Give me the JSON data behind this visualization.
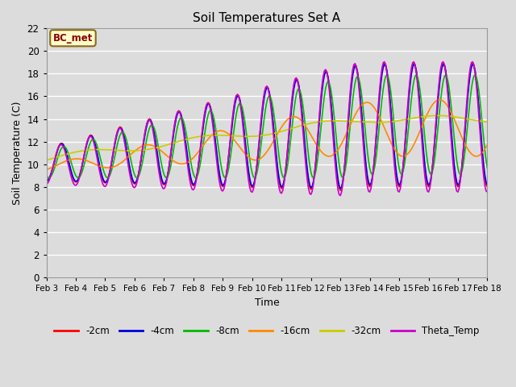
{
  "title": "Soil Temperatures Set A",
  "xlabel": "Time",
  "ylabel": "Soil Temperature (C)",
  "ylim": [
    0,
    22
  ],
  "background_color": "#dcdcdc",
  "plot_bg_color": "#dcdcdc",
  "grid_color": "#ffffff",
  "annotation_text": "BC_met",
  "annotation_bg": "#ffffcc",
  "annotation_edge": "#8b6914",
  "annotation_text_color": "#8b0000",
  "x_tick_labels": [
    "Feb 3",
    "Feb 4",
    "Feb 5",
    "Feb 6",
    "Feb 7",
    "Feb 8",
    "Feb 9",
    "Feb 10",
    "Feb 11",
    "Feb 12",
    "Feb 13",
    "Feb 14",
    "Feb 15",
    "Feb 16",
    "Feb 17",
    "Feb 18"
  ],
  "series": {
    "-2cm": {
      "color": "#ff0000",
      "lw": 1.2
    },
    "-4cm": {
      "color": "#0000dd",
      "lw": 1.2
    },
    "-8cm": {
      "color": "#00bb00",
      "lw": 1.2
    },
    "-16cm": {
      "color": "#ff8800",
      "lw": 1.2
    },
    "-32cm": {
      "color": "#cccc00",
      "lw": 1.2
    },
    "Theta_Temp": {
      "color": "#cc00cc",
      "lw": 1.2
    }
  },
  "legend_order": [
    "-2cm",
    "-4cm",
    "-8cm",
    "-16cm",
    "-32cm",
    "Theta_Temp"
  ]
}
